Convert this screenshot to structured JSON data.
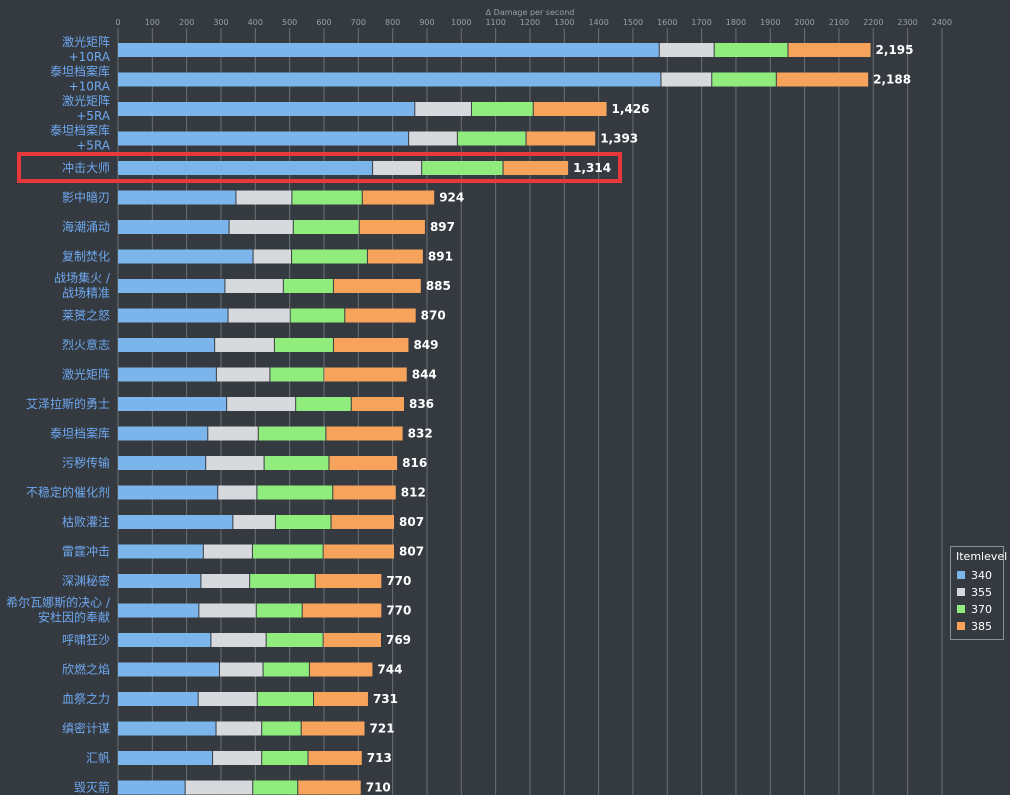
{
  "chart_data": {
    "type": "bar",
    "orientation": "horizontal",
    "stacked": true,
    "xlabel": "Δ Damage per second",
    "xlim": [
      0,
      2400
    ],
    "xticks": [
      0,
      100,
      200,
      300,
      400,
      500,
      600,
      700,
      800,
      900,
      1000,
      1100,
      1200,
      1300,
      1400,
      1500,
      1600,
      1700,
      1800,
      1900,
      2000,
      2100,
      2200,
      2300,
      2400
    ],
    "grid": true,
    "legend_title": "Itemlevel",
    "legend_position": "right",
    "highlighted_category": "冲击大师",
    "categories": [
      [
        "激光矩阵",
        "+10RA"
      ],
      [
        "泰坦档案库",
        "+10RA"
      ],
      [
        "激光矩阵",
        "+5RA"
      ],
      [
        "泰坦档案库",
        "+5RA"
      ],
      [
        "冲击大师"
      ],
      [
        "影中暗刃"
      ],
      [
        "海潮涌动"
      ],
      [
        "复制焚化"
      ],
      [
        "战场集火 /",
        "战场精准"
      ],
      [
        "莱赟之怒"
      ],
      [
        "烈火意志"
      ],
      [
        "激光矩阵"
      ],
      [
        "艾泽拉斯的勇士"
      ],
      [
        "泰坦档案库"
      ],
      [
        "污秽传输"
      ],
      [
        "不稳定的催化剂"
      ],
      [
        "枯败灌注"
      ],
      [
        "雷霆冲击"
      ],
      [
        "深渊秘密"
      ],
      [
        "希尔瓦娜斯的决心 /",
        "安杜因的奉献"
      ],
      [
        "呼啸狂沙"
      ],
      [
        "欣燃之焰"
      ],
      [
        "血祭之力"
      ],
      [
        "缜密计谋"
      ],
      [
        "汇帆"
      ],
      [
        "毁灭箭"
      ]
    ],
    "totals": [
      "2,195",
      "2,188",
      "1,426",
      "1,393",
      "1,314",
      "924",
      "897",
      "891",
      "885",
      "870",
      "849",
      "844",
      "836",
      "832",
      "816",
      "812",
      "807",
      "807",
      "770",
      "770",
      "769",
      "744",
      "731",
      "721",
      "713",
      "710"
    ],
    "series": [
      {
        "name": "340",
        "color": "#7cb5ec",
        "values": [
          1578,
          1583,
          866,
          848,
          743,
          345,
          325,
          395,
          313,
          322,
          283,
          288,
          318,
          263,
          257,
          292,
          336,
          250,
          243,
          237,
          272,
          297,
          235,
          287,
          277,
          197
        ]
      },
      {
        "name": "355",
        "color": "#d8d9dd",
        "values": [
          160,
          148,
          165,
          142,
          143,
          163,
          187,
          112,
          170,
          181,
          174,
          156,
          201,
          147,
          170,
          114,
          124,
          143,
          142,
          167,
          161,
          127,
          172,
          133,
          143,
          197
        ]
      },
      {
        "name": "370",
        "color": "#90ed7d",
        "values": [
          215,
          188,
          180,
          200,
          237,
          205,
          192,
          221,
          146,
          159,
          172,
          157,
          162,
          197,
          189,
          221,
          162,
          206,
          191,
          134,
          166,
          135,
          164,
          115,
          135,
          131
        ]
      },
      {
        "name": "385",
        "color": "#f7a35c",
        "values": [
          242,
          269,
          215,
          203,
          191,
          211,
          193,
          163,
          256,
          208,
          220,
          243,
          155,
          225,
          200,
          185,
          185,
          208,
          194,
          232,
          170,
          185,
          160,
          186,
          158,
          185
        ]
      }
    ]
  }
}
